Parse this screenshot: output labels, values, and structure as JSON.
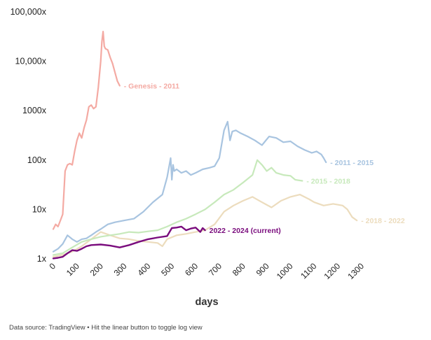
{
  "source_note": "Data source: TradingView • Hit the linear button to toggle log view",
  "chart_data": {
    "type": "line",
    "xlabel": "days",
    "ylabel": "",
    "y_scale": "log",
    "ylim": [
      1,
      100000
    ],
    "xlim": [
      0,
      1300
    ],
    "y_ticks": [
      1,
      10,
      100,
      1000,
      10000,
      100000
    ],
    "y_tick_labels": [
      "1x",
      "10x",
      "100x",
      "1000x",
      "10,000x",
      "100,000x"
    ],
    "x_ticks": [
      0,
      100,
      200,
      300,
      400,
      500,
      600,
      700,
      800,
      900,
      1000,
      1100,
      1200,
      1300
    ],
    "x_tick_labels": [
      "0",
      "100",
      "200",
      "300",
      "400",
      "500",
      "600",
      "700",
      "800",
      "900",
      "1000",
      "1100",
      "1200",
      "1300"
    ],
    "grid": false,
    "legend": "inline labels at line ends",
    "series": [
      {
        "name": "Genesis - 2011",
        "label": "- Genesis - 2011",
        "color": "#f4aaa3",
        "x": [
          0,
          10,
          20,
          30,
          40,
          50,
          60,
          70,
          80,
          90,
          100,
          110,
          120,
          130,
          140,
          150,
          160,
          170,
          180,
          190,
          200,
          205,
          210,
          215,
          220,
          230,
          240,
          250,
          260,
          270,
          280
        ],
        "y": [
          4,
          5,
          4.5,
          6,
          8,
          60,
          80,
          85,
          80,
          150,
          250,
          350,
          280,
          450,
          650,
          1200,
          1300,
          1100,
          1200,
          3000,
          10000,
          25000,
          40000,
          20000,
          18000,
          17000,
          12000,
          9000,
          6000,
          4000,
          3200
        ]
      },
      {
        "name": "2011 - 2015",
        "label": "- 2011 - 2015",
        "color": "#a8c4e0",
        "x": [
          0,
          20,
          40,
          60,
          80,
          100,
          120,
          140,
          160,
          180,
          200,
          230,
          260,
          300,
          340,
          380,
          420,
          460,
          480,
          495,
          500,
          505,
          510,
          520,
          540,
          560,
          580,
          600,
          630,
          660,
          680,
          700,
          720,
          735,
          745,
          755,
          770,
          790,
          820,
          850,
          880,
          910,
          940,
          970,
          1000,
          1030,
          1060,
          1090,
          1110,
          1130,
          1140,
          1150
        ],
        "y": [
          1.4,
          1.6,
          2,
          3,
          2.5,
          2.2,
          2.5,
          2.6,
          3,
          3.5,
          4,
          5,
          5.5,
          6,
          6.5,
          9,
          14,
          20,
          45,
          110,
          40,
          80,
          60,
          65,
          55,
          60,
          50,
          55,
          65,
          70,
          75,
          110,
          400,
          600,
          250,
          380,
          400,
          350,
          300,
          250,
          200,
          300,
          280,
          230,
          240,
          190,
          160,
          140,
          150,
          130,
          110,
          90
        ]
      },
      {
        "name": "2015 - 2018",
        "label": "- 2015 - 2018",
        "color": "#c7e9bb",
        "x": [
          0,
          40,
          80,
          120,
          160,
          200,
          240,
          280,
          320,
          360,
          400,
          440,
          480,
          520,
          560,
          600,
          640,
          680,
          720,
          760,
          800,
          840,
          860,
          880,
          900,
          920,
          940,
          970,
          1000,
          1020,
          1050
        ],
        "y": [
          1.2,
          1.3,
          1.7,
          2.2,
          2.5,
          2.8,
          3,
          3.2,
          3.5,
          3.4,
          3.6,
          3.8,
          4.5,
          5.5,
          6.5,
          8,
          10,
          14,
          20,
          25,
          35,
          50,
          100,
          80,
          60,
          70,
          55,
          50,
          48,
          40,
          38
        ]
      },
      {
        "name": "2018 - 2022",
        "label": "- 2018 - 2022",
        "color": "#ecdcbd",
        "x": [
          0,
          40,
          80,
          120,
          160,
          200,
          240,
          280,
          320,
          360,
          400,
          440,
          460,
          480,
          520,
          560,
          600,
          640,
          680,
          720,
          760,
          800,
          840,
          880,
          920,
          960,
          1000,
          1040,
          1080,
          1100,
          1140,
          1180,
          1220,
          1240,
          1260,
          1280
        ],
        "y": [
          1.1,
          1.2,
          1.4,
          1.8,
          2.5,
          3.5,
          3,
          2.6,
          2.5,
          2.3,
          2.2,
          2.1,
          1.8,
          2.5,
          3,
          3.2,
          3.5,
          3.8,
          5,
          9,
          12,
          15,
          18,
          14,
          11,
          15,
          18,
          20,
          16,
          14,
          12,
          13,
          12,
          10,
          7,
          6
        ]
      },
      {
        "name": "2022 - 2024 (current)",
        "label": "2022 - 2024 (current)",
        "color": "#7a0c7d",
        "x": [
          0,
          20,
          40,
          60,
          80,
          100,
          120,
          140,
          160,
          200,
          240,
          280,
          320,
          360,
          400,
          440,
          480,
          500,
          520,
          540,
          560,
          580,
          600,
          620,
          630,
          640
        ],
        "y": [
          1.02,
          1.05,
          1.1,
          1.3,
          1.5,
          1.45,
          1.6,
          1.8,
          1.9,
          1.95,
          1.85,
          1.7,
          1.9,
          2.2,
          2.5,
          2.7,
          2.9,
          4.2,
          4.3,
          4.5,
          3.8,
          4.1,
          4.3,
          3.5,
          4.2,
          3.8
        ]
      }
    ]
  }
}
